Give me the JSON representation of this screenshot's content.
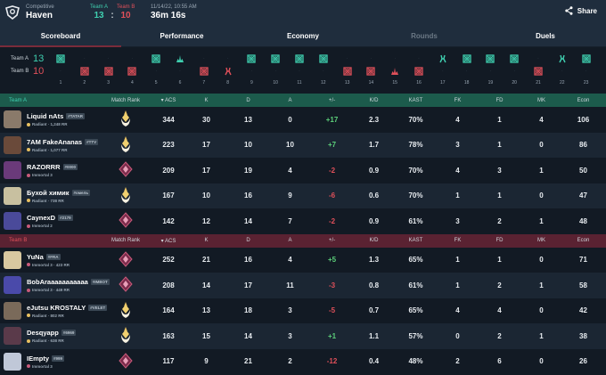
{
  "header": {
    "mode": "Competitive",
    "map": "Haven",
    "team_a_label": "Team A",
    "team_b_label": "Team B",
    "team_a_score": "13",
    "score_sep": ":",
    "team_b_score": "10",
    "date": "11/14/22, 10:55 AM",
    "duration": "36m 16s",
    "share_label": "Share"
  },
  "tabs": [
    {
      "label": "Scoreboard",
      "state": "active"
    },
    {
      "label": "Performance",
      "state": "normal"
    },
    {
      "label": "Economy",
      "state": "normal"
    },
    {
      "label": "Rounds",
      "state": "disabled"
    },
    {
      "label": "Duels",
      "state": "normal"
    }
  ],
  "rounds": {
    "team_a_label": "Team A",
    "team_a_score": "13",
    "team_b_label": "Team B",
    "team_b_score": "10",
    "list": [
      {
        "n": "1",
        "winner": "A",
        "type": "elim"
      },
      {
        "n": "2",
        "winner": "B",
        "type": "elim"
      },
      {
        "n": "3",
        "winner": "B",
        "type": "elim"
      },
      {
        "n": "4",
        "winner": "B",
        "type": "elim"
      },
      {
        "n": "5",
        "winner": "A",
        "type": "elim"
      },
      {
        "n": "6",
        "winner": "A",
        "type": "detonate"
      },
      {
        "n": "7",
        "winner": "B",
        "type": "elim"
      },
      {
        "n": "8",
        "winner": "B",
        "type": "defuse"
      },
      {
        "n": "9",
        "winner": "A",
        "type": "elim"
      },
      {
        "n": "10",
        "winner": "A",
        "type": "elim"
      },
      {
        "n": "11",
        "winner": "A",
        "type": "elim"
      },
      {
        "n": "12",
        "winner": "A",
        "type": "elim"
      },
      {
        "n": "13",
        "winner": "B",
        "type": "elim"
      },
      {
        "n": "14",
        "winner": "B",
        "type": "elim"
      },
      {
        "n": "15",
        "winner": "B",
        "type": "detonate"
      },
      {
        "n": "16",
        "winner": "B",
        "type": "elim"
      },
      {
        "n": "17",
        "winner": "A",
        "type": "defuse"
      },
      {
        "n": "18",
        "winner": "A",
        "type": "elim"
      },
      {
        "n": "19",
        "winner": "A",
        "type": "elim"
      },
      {
        "n": "20",
        "winner": "A",
        "type": "elim"
      },
      {
        "n": "21",
        "winner": "B",
        "type": "elim"
      },
      {
        "n": "22",
        "winner": "A",
        "type": "defuse"
      },
      {
        "n": "23",
        "winner": "A",
        "type": "elim"
      }
    ]
  },
  "columns": {
    "match_rank": "Match Rank",
    "acs": "ACS",
    "k": "K",
    "d": "D",
    "a": "A",
    "pm": "+/-",
    "kd": "K/D",
    "kast": "KAST",
    "fk": "FK",
    "fd": "FD",
    "mk": "MK",
    "econ": "Econ"
  },
  "colors": {
    "team_a": "#3fd0b0",
    "team_b": "#e0505a",
    "positive": "#5cd07a",
    "negative": "#e0505a"
  },
  "team_a": {
    "label": "Team A",
    "players": [
      {
        "name": "Liquid nAts",
        "tag": "#TATAR",
        "rank": "Radiant · 1,248 RR",
        "rank_tier": "radiant",
        "match_rank": "radiant",
        "acs": "344",
        "k": "30",
        "d": "13",
        "a": "0",
        "pm": "+17",
        "kd": "2.3",
        "kast": "70%",
        "fk": "4",
        "fd": "1",
        "mk": "4",
        "econ": "106",
        "avatar": "#8a7a6a"
      },
      {
        "name": "7AM FakeAnanas",
        "tag": "#TTV",
        "rank": "Radiant · 1,077 RR",
        "rank_tier": "radiant",
        "match_rank": "radiant",
        "acs": "223",
        "k": "17",
        "d": "10",
        "a": "10",
        "pm": "+7",
        "kd": "1.7",
        "kast": "78%",
        "fk": "3",
        "fd": "1",
        "mk": "0",
        "econ": "86",
        "avatar": "#6a4a3a"
      },
      {
        "name": "RAZORRR",
        "tag": "#0000",
        "rank": "Immortal 3",
        "rank_tier": "immortal",
        "match_rank": "immortal",
        "acs": "209",
        "k": "17",
        "d": "19",
        "a": "4",
        "pm": "-2",
        "kd": "0.9",
        "kast": "70%",
        "fk": "4",
        "fd": "3",
        "mk": "1",
        "econ": "50",
        "avatar": "#6a3a7a"
      },
      {
        "name": "Бухой химик",
        "tag": "#омель",
        "rank": "Radiant · 738 RR",
        "rank_tier": "radiant",
        "match_rank": "radiant",
        "acs": "167",
        "k": "10",
        "d": "16",
        "a": "9",
        "pm": "-6",
        "kd": "0.6",
        "kast": "70%",
        "fk": "1",
        "fd": "1",
        "mk": "0",
        "econ": "47",
        "avatar": "#c8c0a0"
      },
      {
        "name": "CaynexD",
        "tag": "#2179",
        "rank": "Immortal 2",
        "rank_tier": "immortal",
        "match_rank": "immortal",
        "acs": "142",
        "k": "12",
        "d": "14",
        "a": "7",
        "pm": "-2",
        "kd": "0.9",
        "kast": "61%",
        "fk": "3",
        "fd": "2",
        "mk": "1",
        "econ": "48",
        "avatar": "#4a4a9a"
      }
    ]
  },
  "team_b": {
    "label": "Team B",
    "players": [
      {
        "name": "YuNa",
        "tag": "#FRA",
        "rank": "Immortal 3 · 423 RR",
        "rank_tier": "immortal",
        "match_rank": "immortal",
        "acs": "252",
        "k": "21",
        "d": "16",
        "a": "4",
        "pm": "+5",
        "kd": "1.3",
        "kast": "65%",
        "fk": "1",
        "fd": "1",
        "mk": "0",
        "econ": "71",
        "avatar": "#d8c8a0"
      },
      {
        "name": "BobAraaaaaaaaaaa",
        "tag": "#IMBOT",
        "rank": "Immortal 3 · 449 RR",
        "rank_tier": "immortal",
        "match_rank": "immortal",
        "acs": "208",
        "k": "14",
        "d": "17",
        "a": "11",
        "pm": "-3",
        "kd": "0.8",
        "kast": "61%",
        "fk": "1",
        "fd": "2",
        "mk": "1",
        "econ": "58",
        "avatar": "#4a4aaa"
      },
      {
        "name": "eJutsu KROSTALY",
        "tag": "#VELET",
        "rank": "Radiant · 802 RR",
        "rank_tier": "radiant",
        "match_rank": "radiant",
        "acs": "164",
        "k": "13",
        "d": "18",
        "a": "3",
        "pm": "-5",
        "kd": "0.7",
        "kast": "65%",
        "fk": "4",
        "fd": "4",
        "mk": "0",
        "econ": "42",
        "avatar": "#7a6a5a"
      },
      {
        "name": "Desqyapp",
        "tag": "#6969",
        "rank": "Radiant · 638 RR",
        "rank_tier": "radiant",
        "match_rank": "radiant",
        "acs": "163",
        "k": "15",
        "d": "14",
        "a": "3",
        "pm": "+1",
        "kd": "1.1",
        "kast": "57%",
        "fk": "0",
        "fd": "2",
        "mk": "1",
        "econ": "38",
        "avatar": "#5a3a4a"
      },
      {
        "name": "IEmpty",
        "tag": "#999",
        "rank": "Immortal 3",
        "rank_tier": "immortal",
        "match_rank": "immortal",
        "acs": "117",
        "k": "9",
        "d": "21",
        "a": "2",
        "pm": "-12",
        "kd": "0.4",
        "kast": "48%",
        "fk": "2",
        "fd": "6",
        "mk": "0",
        "econ": "26",
        "avatar": "#c0c8d8"
      }
    ]
  }
}
